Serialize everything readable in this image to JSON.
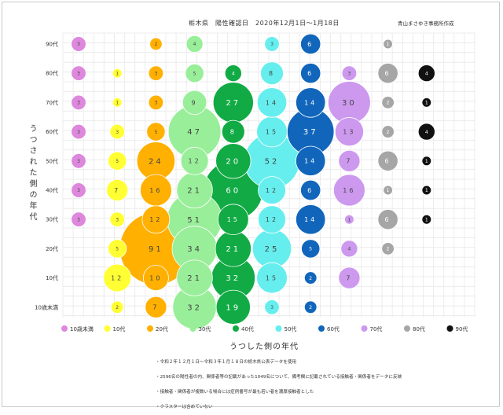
{
  "header": {
    "title": "栃木県　陽性確認日　2020年12月1日〜1月18日",
    "credit": "青山まさゆき事務所作成"
  },
  "notes": [
    "・令和２年１２月１日〜令和３年１月１８日の栃木県公表データを使用",
    "・2596名の陽性者の内、関係者等の記載があった1049名について、備考欄に記載されている接触者・関係者をデータに反映",
    "・接触者・関係者が複数いる場合には症例番号が最も若い者を濃厚接触者とした",
    "・クラスターは含めていない"
  ],
  "chart_data": {
    "type": "bubble",
    "title": "栃木県　陽性確認日　2020年12月1日〜1月18日",
    "xlabel": "うつした側の年代",
    "ylabel": "うつされた側の年代",
    "categories": [
      "10歳未満",
      "10代",
      "20代",
      "30代",
      "40代",
      "50代",
      "60代",
      "70代",
      "80代",
      "90代"
    ],
    "colors": [
      "#dd88dd",
      "#ffff33",
      "#ffb000",
      "#99ee99",
      "#11aa44",
      "#66eeee",
      "#1166bb",
      "#cc99ee",
      "#a6a6a6",
      "#111111"
    ],
    "legend": "bottom",
    "grid": true,
    "series": [
      {
        "name": "10歳未満",
        "values": [
          null,
          null,
          null,
          3,
          3,
          3,
          3,
          3,
          3,
          3
        ]
      },
      {
        "name": "10代",
        "values": [
          2,
          12,
          5,
          3,
          7,
          5,
          3,
          1,
          1,
          null
        ]
      },
      {
        "name": "20代",
        "values": [
          7,
          10,
          91,
          12,
          16,
          24,
          5,
          3,
          3,
          2
        ]
      },
      {
        "name": "30代",
        "values": [
          32,
          21,
          34,
          51,
          21,
          12,
          47,
          9,
          5,
          4
        ]
      },
      {
        "name": "40代",
        "values": [
          19,
          32,
          21,
          15,
          60,
          20,
          8,
          27,
          4,
          null
        ]
      },
      {
        "name": "50代",
        "values": [
          3,
          15,
          25,
          12,
          12,
          52,
          15,
          14,
          8,
          3
        ]
      },
      {
        "name": "60代",
        "values": [
          2,
          2,
          5,
          14,
          6,
          14,
          37,
          14,
          6,
          6
        ]
      },
      {
        "name": "70代",
        "values": [
          null,
          7,
          4,
          1,
          16,
          7,
          13,
          30,
          3,
          null
        ]
      },
      {
        "name": "80代",
        "values": [
          null,
          null,
          2,
          6,
          1,
          6,
          2,
          2,
          6,
          1
        ]
      },
      {
        "name": "90代",
        "values": [
          null,
          null,
          null,
          1,
          1,
          1,
          4,
          1,
          4,
          null
        ]
      }
    ]
  }
}
